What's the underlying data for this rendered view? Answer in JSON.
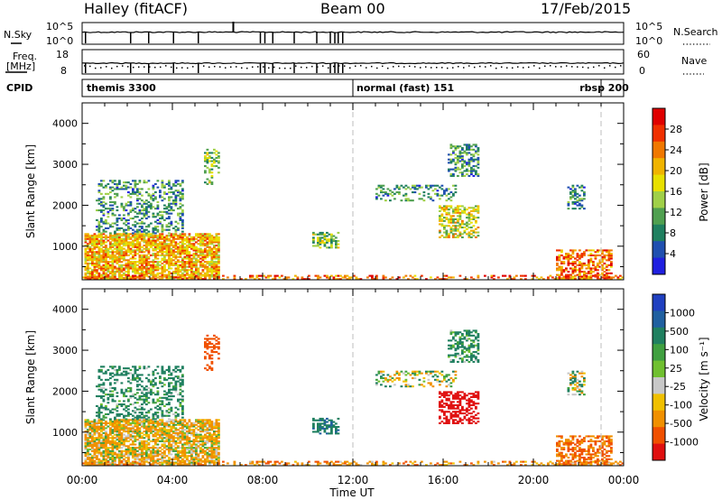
{
  "header": {
    "station": "Halley (fitACF)",
    "beam": "Beam 00",
    "date": "17/Feb/2015"
  },
  "noise_panel": {
    "left_label": "N.Sky",
    "left_ticks": [
      "10^5",
      "10^0"
    ],
    "right_label": "N.Search",
    "right_ticks": [
      "10^5",
      "10^0"
    ]
  },
  "freq_panel": {
    "left_label_1": "Freq.",
    "left_label_2": "[MHz]",
    "left_ticks": [
      "18",
      "8"
    ],
    "right_label": "Nave",
    "right_ticks": [
      "60",
      "0"
    ]
  },
  "cpid_panel": {
    "label": "CPID",
    "modes": [
      {
        "name": "themis 3300",
        "start_hour": 0
      },
      {
        "name": "normal (fast) 151",
        "start_hour": 12
      },
      {
        "name": "rbsp 200",
        "start_hour": 23
      }
    ]
  },
  "power_panel": {
    "ylabel": "Slant Range [km]",
    "colorbar_label": "Power [dB]",
    "colorbar_ticks": [
      "28",
      "24",
      "20",
      "16",
      "12",
      "8",
      "4"
    ],
    "colors": [
      "#e00000",
      "#f03000",
      "#f07800",
      "#f0b400",
      "#e8e000",
      "#a0d048",
      "#50a050",
      "#208060",
      "#2050b0",
      "#2020e0"
    ]
  },
  "velocity_panel": {
    "ylabel": "Slant Range [km]",
    "colorbar_label": "Velocity [m s⁻¹]",
    "colorbar_ticks": [
      "1000",
      "500",
      "100",
      "25",
      "-25",
      "-100",
      "-500",
      "-1000"
    ],
    "colors": [
      "#2040c0",
      "#2060a0",
      "#208060",
      "#40a040",
      "#70c030",
      "#c8c8c8",
      "#f0c000",
      "#f09000",
      "#f05000",
      "#e01010"
    ]
  },
  "x_axis": {
    "label": "Time UT",
    "ticks": [
      "00:00",
      "04:00",
      "08:00",
      "12:00",
      "16:00",
      "20:00",
      "00:00"
    ]
  },
  "chart_data": {
    "type": "heatmap",
    "title": "Halley (fitACF)  Beam 00  17/Feb/2015",
    "xlabel": "Time UT",
    "ylabel": "Slant Range [km]",
    "xlim_hours": [
      0,
      24
    ],
    "ylim_km": [
      180,
      4500
    ],
    "y_ticks_km": [
      1000,
      2000,
      3000,
      4000
    ],
    "power_colorbar_db": [
      4,
      8,
      12,
      16,
      20,
      24,
      28
    ],
    "velocity_colorbar_ms": [
      -1000,
      -500,
      -100,
      -25,
      25,
      100,
      500,
      1000
    ],
    "mode_change_hours": [
      12,
      23
    ],
    "echo_regions": [
      {
        "t0": 0.1,
        "t1": 6.0,
        "r0": 200,
        "r1": 1300,
        "power_db": 20,
        "velocity_ms": -100,
        "density": 0.75
      },
      {
        "t0": 0.6,
        "t1": 4.5,
        "r0": 1300,
        "r1": 2600,
        "power_db": 8,
        "velocity_ms": 200,
        "density": 0.35
      },
      {
        "t0": 5.4,
        "t1": 6.0,
        "r0": 2500,
        "r1": 3350,
        "power_db": 12,
        "velocity_ms": -500,
        "density": 0.4
      },
      {
        "t0": 10.2,
        "t1": 11.3,
        "r0": 950,
        "r1": 1350,
        "power_db": 12,
        "velocity_ms": 300,
        "density": 0.6
      },
      {
        "t0": 13.0,
        "t1": 16.5,
        "r0": 2100,
        "r1": 2500,
        "power_db": 8,
        "velocity_ms": 0,
        "density": 0.35
      },
      {
        "t0": 15.8,
        "t1": 17.6,
        "r0": 1200,
        "r1": 2000,
        "power_db": 16,
        "velocity_ms": -900,
        "density": 0.55
      },
      {
        "t0": 16.2,
        "t1": 17.6,
        "r0": 2700,
        "r1": 3500,
        "power_db": 8,
        "velocity_ms": 200,
        "density": 0.45
      },
      {
        "t0": 21.0,
        "t1": 23.5,
        "r0": 200,
        "r1": 900,
        "power_db": 24,
        "velocity_ms": -300,
        "density": 0.55
      },
      {
        "t0": 21.5,
        "t1": 22.3,
        "r0": 1900,
        "r1": 2500,
        "power_db": 8,
        "velocity_ms": 0,
        "density": 0.45
      },
      {
        "t0": 0.0,
        "t1": 24.0,
        "r0": 180,
        "r1": 300,
        "power_db": 24,
        "velocity_ms": -200,
        "density": 0.35
      }
    ]
  }
}
